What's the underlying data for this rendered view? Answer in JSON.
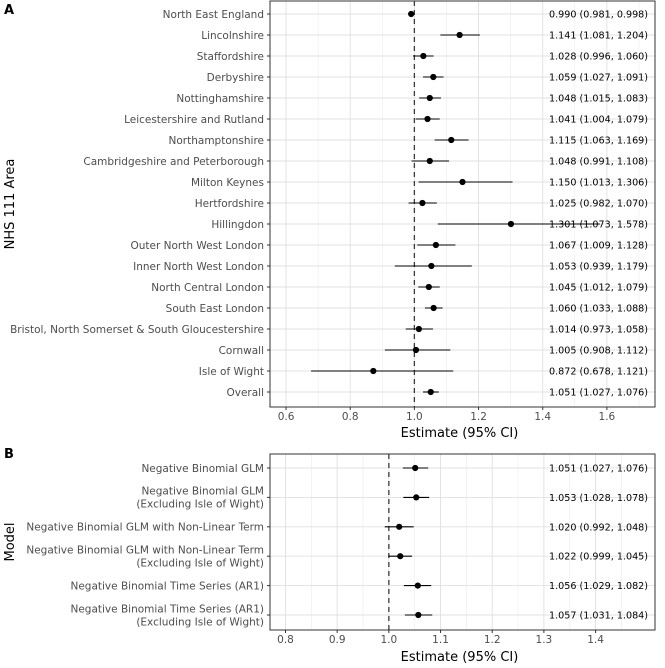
{
  "chart_data": [
    {
      "type": "forest",
      "panel_label": "A",
      "xlabel": "Estimate (95% CI)",
      "ylabel": "NHS 111 Area",
      "xlim": [
        0.55,
        1.75
      ],
      "xticks": [
        0.6,
        0.8,
        1.0,
        1.2,
        1.4,
        1.6
      ],
      "xtick_labels": [
        "0.6",
        "0.8",
        "1.0",
        "1.2",
        "1.4",
        "1.6"
      ],
      "reference": 1.0,
      "rows": [
        {
          "label": "North East England",
          "est": 0.99,
          "lo": 0.981,
          "hi": 0.998,
          "text": "0.990 (0.981, 0.998)"
        },
        {
          "label": "Lincolnshire",
          "est": 1.141,
          "lo": 1.081,
          "hi": 1.204,
          "text": "1.141 (1.081, 1.204)"
        },
        {
          "label": "Staffordshire",
          "est": 1.028,
          "lo": 0.996,
          "hi": 1.06,
          "text": "1.028 (0.996, 1.060)"
        },
        {
          "label": "Derbyshire",
          "est": 1.059,
          "lo": 1.027,
          "hi": 1.091,
          "text": "1.059 (1.027, 1.091)"
        },
        {
          "label": "Nottinghamshire",
          "est": 1.048,
          "lo": 1.015,
          "hi": 1.083,
          "text": "1.048 (1.015, 1.083)"
        },
        {
          "label": "Leicestershire and Rutland",
          "est": 1.041,
          "lo": 1.004,
          "hi": 1.079,
          "text": "1.041 (1.004, 1.079)"
        },
        {
          "label": "Northamptonshire",
          "est": 1.115,
          "lo": 1.063,
          "hi": 1.169,
          "text": "1.115 (1.063, 1.169)"
        },
        {
          "label": "Cambridgeshire and Peterborough",
          "est": 1.048,
          "lo": 0.991,
          "hi": 1.108,
          "text": "1.048 (0.991, 1.108)"
        },
        {
          "label": "Milton Keynes",
          "est": 1.15,
          "lo": 1.013,
          "hi": 1.306,
          "text": "1.150 (1.013, 1.306)"
        },
        {
          "label": "Hertfordshire",
          "est": 1.025,
          "lo": 0.982,
          "hi": 1.07,
          "text": "1.025 (0.982, 1.070)"
        },
        {
          "label": "Hillingdon",
          "est": 1.301,
          "lo": 1.073,
          "hi": 1.578,
          "text": "1.301 (1.073, 1.578)"
        },
        {
          "label": "Outer North West London",
          "est": 1.067,
          "lo": 1.009,
          "hi": 1.128,
          "text": "1.067 (1.009, 1.128)"
        },
        {
          "label": "Inner North West London",
          "est": 1.053,
          "lo": 0.939,
          "hi": 1.179,
          "text": "1.053 (0.939, 1.179)"
        },
        {
          "label": "North Central London",
          "est": 1.045,
          "lo": 1.012,
          "hi": 1.079,
          "text": "1.045 (1.012, 1.079)"
        },
        {
          "label": "South East London",
          "est": 1.06,
          "lo": 1.033,
          "hi": 1.088,
          "text": "1.060 (1.033, 1.088)"
        },
        {
          "label": "Bristol, North Somerset & South Gloucestershire",
          "est": 1.014,
          "lo": 0.973,
          "hi": 1.058,
          "text": "1.014 (0.973, 1.058)"
        },
        {
          "label": "Cornwall",
          "est": 1.005,
          "lo": 0.908,
          "hi": 1.112,
          "text": "1.005 (0.908, 1.112)"
        },
        {
          "label": "Isle of Wight",
          "est": 0.872,
          "lo": 0.678,
          "hi": 1.121,
          "text": "0.872 (0.678, 1.121)"
        },
        {
          "label": "Overall",
          "est": 1.051,
          "lo": 1.027,
          "hi": 1.076,
          "text": "1.051 (1.027, 1.076)"
        }
      ]
    },
    {
      "type": "forest",
      "panel_label": "B",
      "xlabel": "Estimate (95% CI)",
      "ylabel": "Model",
      "xlim": [
        0.77,
        1.515
      ],
      "xticks": [
        0.8,
        0.9,
        1.0,
        1.1,
        1.2,
        1.3,
        1.4
      ],
      "xtick_labels": [
        "0.8",
        "0.9",
        "1.0",
        "1.1",
        "1.2",
        "1.3",
        "1.4"
      ],
      "reference": 1.0,
      "rows": [
        {
          "label": [
            "Negative Binomial GLM"
          ],
          "est": 1.051,
          "lo": 1.027,
          "hi": 1.076,
          "text": "1.051 (1.027, 1.076)"
        },
        {
          "label": [
            "Negative Binomial GLM",
            "(Excluding Isle of Wight)"
          ],
          "est": 1.053,
          "lo": 1.028,
          "hi": 1.078,
          "text": "1.053 (1.028, 1.078)"
        },
        {
          "label": [
            "Negative Binomial GLM with Non-Linear Term"
          ],
          "est": 1.02,
          "lo": 0.992,
          "hi": 1.048,
          "text": "1.020 (0.992, 1.048)"
        },
        {
          "label": [
            "Negative Binomial GLM with Non-Linear Term",
            "(Excluding Isle of Wight)"
          ],
          "est": 1.022,
          "lo": 0.999,
          "hi": 1.045,
          "text": "1.022 (0.999, 1.045)"
        },
        {
          "label": [
            "Negative Binomial Time Series (AR1)"
          ],
          "est": 1.056,
          "lo": 1.029,
          "hi": 1.082,
          "text": "1.056 (1.029, 1.082)"
        },
        {
          "label": [
            "Negative Binomial Time Series (AR1)",
            "(Excluding Isle of Wight)"
          ],
          "est": 1.057,
          "lo": 1.031,
          "hi": 1.084,
          "text": "1.057 (1.031, 1.084)"
        }
      ]
    }
  ]
}
